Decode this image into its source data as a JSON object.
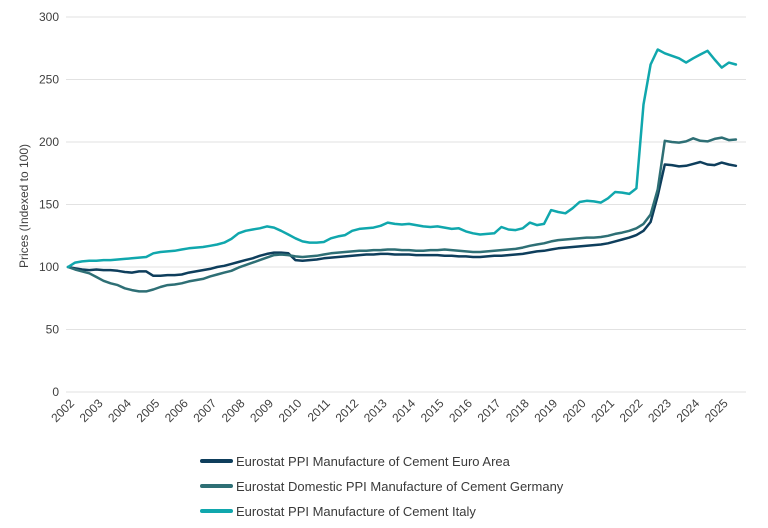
{
  "chart_data": {
    "type": "line",
    "title": "",
    "ylabel": "Prices (Indexed to 100)",
    "xlabel": "",
    "ylim": [
      0,
      300
    ],
    "y_ticks": [
      0,
      50,
      100,
      150,
      200,
      250,
      300
    ],
    "x_ticks": [
      2002,
      2003,
      2004,
      2005,
      2006,
      2007,
      2008,
      2009,
      2010,
      2011,
      2012,
      2013,
      2014,
      2015,
      2016,
      2017,
      2018,
      2019,
      2020,
      2021,
      2022,
      2023,
      2024,
      2025
    ],
    "x_start": 2002,
    "x_step": 0.25,
    "grid": "horizontal-only",
    "legend_position": "bottom-center",
    "axis_text_color": "#3f3f3f",
    "gridline_color": "#e2e2e2",
    "series": [
      {
        "name": "Eurostat PPI Manufacture of Cement Euro Area",
        "color": "#0e3e5c",
        "values": [
          100,
          99,
          98,
          97.5,
          98,
          97.5,
          97.5,
          97,
          96,
          95.5,
          96.5,
          96.5,
          93,
          93,
          93.5,
          93.5,
          94,
          95.5,
          96.5,
          97.5,
          98.5,
          100,
          101,
          102.5,
          104,
          105.5,
          107,
          109,
          110.5,
          111.5,
          111.5,
          111,
          105.5,
          105,
          105.5,
          106,
          107,
          107.5,
          108,
          108.5,
          109,
          109.5,
          110,
          110,
          110.5,
          110.5,
          110,
          110,
          110,
          109.5,
          109.5,
          109.5,
          109.5,
          109,
          109,
          108.5,
          108.5,
          108,
          108,
          108.5,
          109,
          109,
          109.5,
          110,
          110.5,
          111.5,
          112.5,
          113,
          114,
          115,
          115.5,
          116,
          116.5,
          117,
          117.5,
          118,
          119,
          120.5,
          122,
          123.5,
          125.5,
          129,
          136,
          157,
          182,
          181.5,
          180.5,
          181,
          182.5,
          184,
          182,
          181.5,
          183.5,
          182,
          181
        ]
      },
      {
        "name": "Eurostat Domestic PPI Manufacture of Cement Germany",
        "color": "#2e6f75",
        "values": [
          100,
          98,
          96.5,
          95,
          92,
          89,
          87,
          85.5,
          83,
          81.5,
          80.5,
          80.5,
          82,
          84,
          85.5,
          86,
          87,
          88.5,
          89.5,
          90.5,
          92.5,
          94,
          95.5,
          97,
          99.5,
          101.5,
          103.5,
          105.5,
          107.5,
          109.5,
          110,
          109.5,
          108.5,
          108,
          108.5,
          109,
          110,
          111,
          111.5,
          112,
          112.5,
          113,
          113,
          113.5,
          113.5,
          114,
          114,
          113.5,
          113.5,
          113,
          113,
          113.5,
          113.5,
          114,
          113.5,
          113,
          112.5,
          112,
          112,
          112.5,
          113,
          113.5,
          114,
          114.5,
          115.5,
          117,
          118,
          119,
          120.5,
          121.5,
          122,
          122.5,
          123,
          123.5,
          123.5,
          124,
          125,
          126.5,
          127.5,
          129,
          131,
          134.5,
          142,
          162,
          201,
          200,
          199.5,
          200.5,
          203,
          201,
          200.5,
          202.5,
          203.5,
          201.5,
          202
        ]
      },
      {
        "name": "Eurostat PPI Manufacture of Cement Italy",
        "color": "#10a7ad",
        "values": [
          100,
          103.5,
          104.5,
          105,
          105,
          105.5,
          105.5,
          106,
          106.5,
          107,
          107.5,
          108,
          111,
          112,
          112.5,
          113,
          114,
          115,
          115.5,
          116,
          117,
          118,
          119.5,
          122.5,
          127,
          129,
          130,
          131,
          132.5,
          131.5,
          129,
          126,
          123,
          120.5,
          119.5,
          119.5,
          120,
          123,
          124.5,
          125.5,
          129,
          130.5,
          131,
          131.5,
          133,
          135.5,
          134.5,
          134,
          134.5,
          133.5,
          132.5,
          132,
          132.5,
          131.5,
          130.5,
          131,
          128.5,
          127,
          126,
          126.5,
          127,
          132,
          130,
          129.5,
          131,
          135.5,
          133.5,
          134.5,
          145.5,
          144,
          143,
          147,
          152,
          153,
          152.5,
          151.5,
          155,
          160,
          159.5,
          158.5,
          163,
          230,
          262,
          274,
          271,
          269,
          267,
          263.5,
          267,
          270,
          273,
          266,
          259.5,
          263.5,
          262
        ]
      }
    ]
  }
}
